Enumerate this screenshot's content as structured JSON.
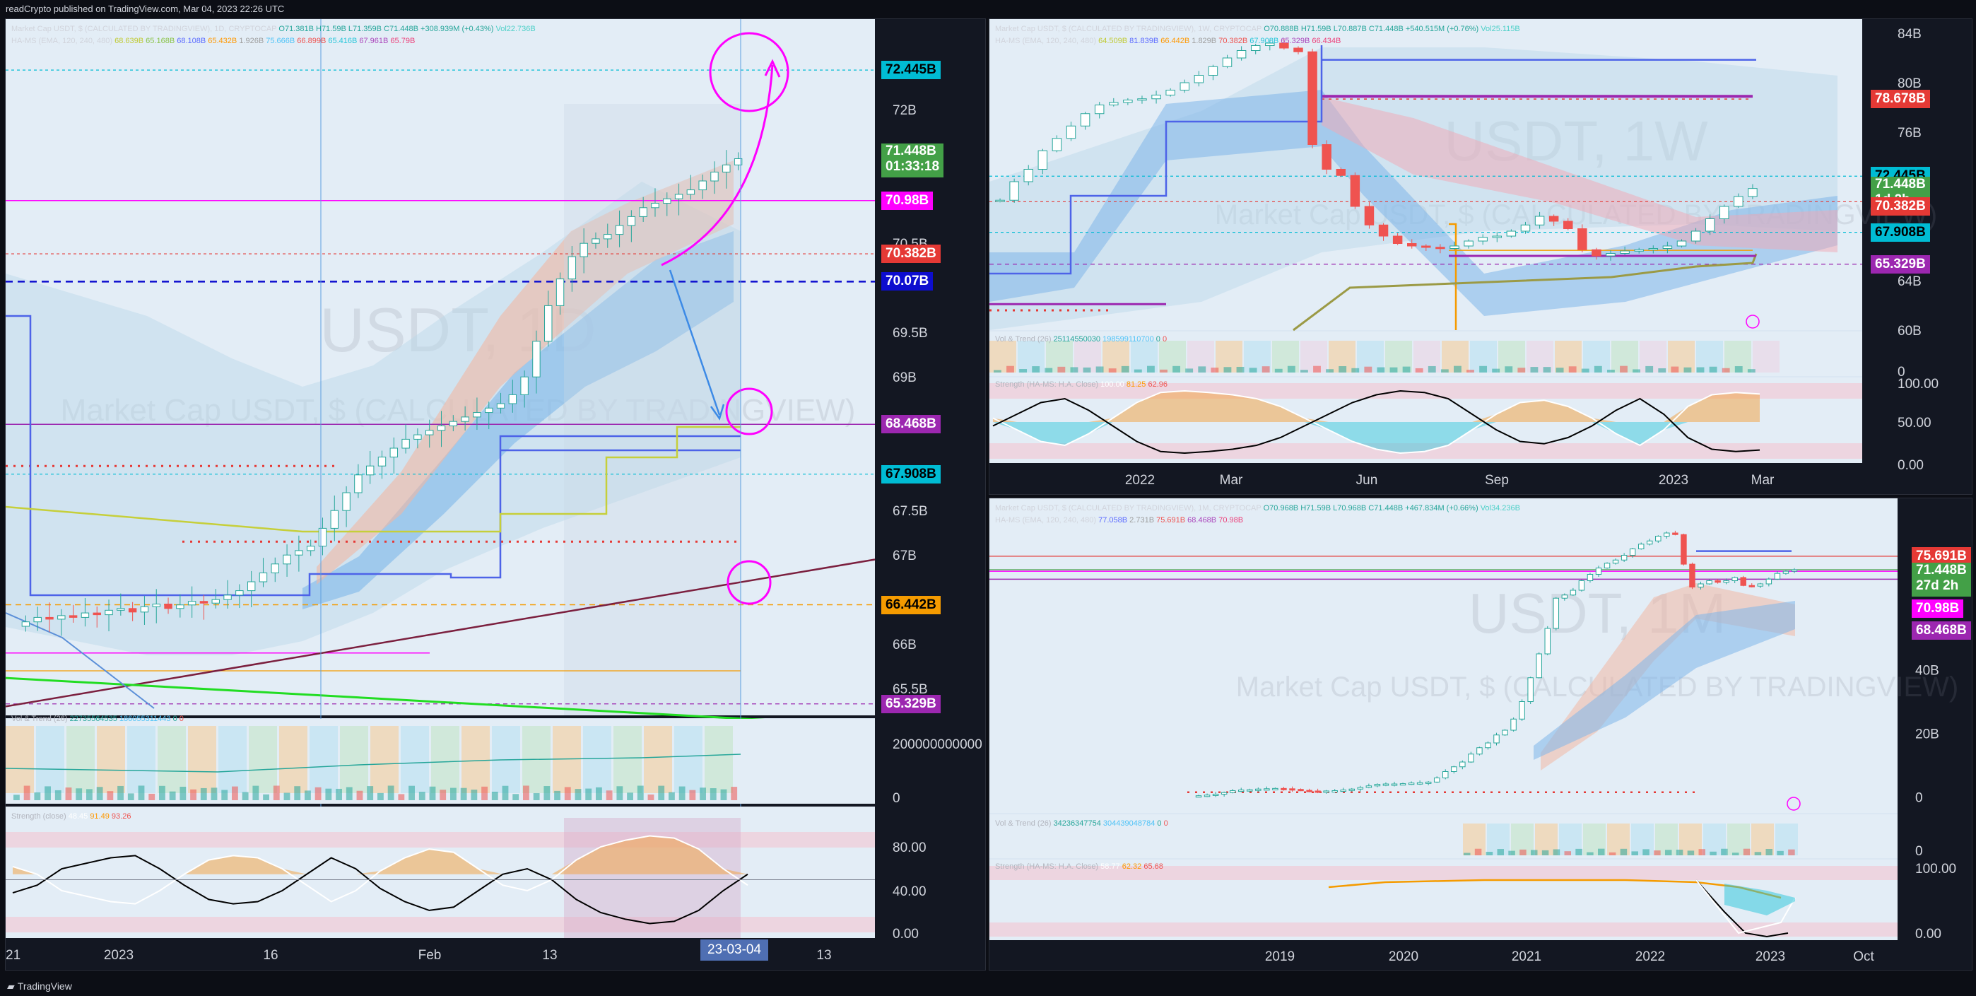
{
  "header": {
    "text": "readCrypto published on TradingView.com, Mar 04, 2023 22:26 UTC"
  },
  "footer": {
    "brand": "TradingView"
  },
  "panels": {
    "daily": {
      "legend1": {
        "title": "Market Cap USDT, $ (CALCULATED BY TRADINGVIEW), 1D, CRYPTOCAP",
        "o": "O71.381B",
        "h": "H71.59B",
        "l": "L71.359B",
        "c": "C71.448B",
        "chg": "+308.939M (+0.43%)",
        "vol": "Vol22.736B"
      },
      "legend2": {
        "name": "HA-MS (EMA, 120, 240, 480)",
        "v1": "68.639B",
        "v2": "65.168B",
        "v3": "68.108B",
        "v4": "65.432B",
        "v5": "1.926B",
        "v6": "75.666B",
        "v7": "66.899B",
        "v8": "65.416B",
        "v9": "67.961B",
        "v10": "65.79B"
      },
      "vol_legend": {
        "name": "Vol & Trend (26)",
        "v1": "22735564535",
        "v2": "186055311443",
        "v3": "0",
        "v4": "0"
      },
      "strength_legend": {
        "name": "Strength (close)",
        "v1": "48.45",
        "v2": "91.49",
        "v3": "93.26"
      },
      "watermark": {
        "ticker": "USDT, 1D",
        "desc": "Market Cap USDT, $ (CALCULATED BY TRADINGVIEW)"
      },
      "price_ticks": [
        "72B",
        "70.5B",
        "69.5B",
        "69B",
        "68.5B",
        "67.5B",
        "67B",
        "66B",
        "65.5B"
      ],
      "vol_ticks": [
        "200000000000",
        "0"
      ],
      "strength_ticks": [
        "80.00",
        "40.00",
        "0.00"
      ],
      "x_ticks": [
        "21",
        "2023",
        "16",
        "Feb",
        "13",
        "13"
      ],
      "date_box": "23-03-04",
      "tags": [
        {
          "label": "72.445B",
          "color": "#00bcd4",
          "text_color": "#000000"
        },
        {
          "label": "71.448B",
          "label2": "01:33:18",
          "color": "#43a047",
          "text_color": "#ffffff"
        },
        {
          "label": "70.98B",
          "color": "#ff00ff",
          "text_color": "#ffffff"
        },
        {
          "label": "70.382B",
          "color": "#e53935",
          "text_color": "#ffffff"
        },
        {
          "label": "70.07B",
          "color": "#0d0dcf",
          "text_color": "#ffffff"
        },
        {
          "label": "68.468B",
          "color": "#9c27b0",
          "text_color": "#ffffff"
        },
        {
          "label": "67.908B",
          "color": "#00bcd4",
          "text_color": "#000000"
        },
        {
          "label": "66.442B",
          "color": "#f59b00",
          "text_color": "#000000"
        },
        {
          "label": "65.329B",
          "color": "#9c27b0",
          "text_color": "#ffffff"
        }
      ]
    },
    "weekly": {
      "legend1": {
        "title": "Market Cap USDT, $ (CALCULATED BY TRADINGVIEW), 1W, CRYPTOCAP",
        "o": "O70.888B",
        "h": "H71.59B",
        "l": "L70.887B",
        "c": "C71.448B",
        "chg": "+540.515M (+0.76%)",
        "vol": "Vol25.115B"
      },
      "legend2": {
        "name": "HA-MS (EMA, 120, 240, 480)",
        "v1": "64.509B",
        "v2": "81.839B",
        "v3": "66.442B",
        "v4": "1.829B",
        "v5": "70.382B",
        "v6": "67.908B",
        "v7": "65.329B",
        "v8": "66.434B"
      },
      "vol_legend": {
        "name": "Vol & Trend (26)",
        "v1": "25114550030",
        "v2": "198599110700",
        "v3": "0",
        "v4": "0"
      },
      "strength_legend": {
        "name": "Strength (HA-MS: H.A. Close)",
        "v1": "100.00",
        "v2": "81.25",
        "v3": "62.96"
      },
      "watermark": {
        "ticker": "USDT, 1W",
        "desc": "Market Cap USDT, $ (CALCULATED BY TRADINGVIEW)"
      },
      "price_ticks": [
        "84B",
        "80B",
        "76B",
        "64B",
        "60B"
      ],
      "vol_ticks": [
        "0"
      ],
      "strength_ticks": [
        "100.00",
        "50.00",
        "0.00"
      ],
      "x_ticks": [
        "2022",
        "Mar",
        "Jun",
        "Sep",
        "2023",
        "Mar"
      ],
      "tags": [
        {
          "label": "78.678B",
          "color": "#e53935",
          "text_color": "#ffffff"
        },
        {
          "label": "72.445B",
          "color": "#00bcd4",
          "text_color": "#000000"
        },
        {
          "label": "71.448B",
          "label2": "1d 2h",
          "color": "#43a047",
          "text_color": "#ffffff"
        },
        {
          "label": "70.382B",
          "color": "#e53935",
          "text_color": "#ffffff"
        },
        {
          "label": "67.908B",
          "color": "#00bcd4",
          "text_color": "#000000"
        },
        {
          "label": "65.329B",
          "color": "#9c27b0",
          "text_color": "#ffffff"
        }
      ]
    },
    "monthly": {
      "legend1": {
        "title": "Market Cap USDT, $ (CALCULATED BY TRADINGVIEW), 1M, CRYPTOCAP",
        "o": "O70.968B",
        "h": "H71.59B",
        "l": "L70.968B",
        "c": "C71.448B",
        "chg": "+467.834M (+0.66%)",
        "vol": "Vol34.236B"
      },
      "legend2": {
        "name": "HA-MS (EMA, 120, 240, 480)",
        "v1": "77.058B",
        "v2": "2.731B",
        "v3": "75.691B",
        "v4": "68.468B",
        "v5": "70.98B"
      },
      "vol_legend": {
        "name": "Vol & Trend (26)",
        "v1": "34236347754",
        "v2": "304439048784",
        "v3": "0",
        "v4": "0"
      },
      "strength_legend": {
        "name": "Strength (HA-MS: H.A. Close)",
        "v1": "58.77",
        "v2": "62.32",
        "v3": "65.68"
      },
      "watermark": {
        "ticker": "USDT, 1M",
        "desc": "Market Cap USDT, $ (CALCULATED BY TRADINGVIEW)"
      },
      "price_ticks": [
        "40B",
        "20B",
        "0"
      ],
      "vol_ticks": [
        "0"
      ],
      "strength_ticks": [
        "100.00",
        "0.00"
      ],
      "x_ticks": [
        "2019",
        "2020",
        "2021",
        "2022",
        "2023",
        "Oct"
      ],
      "tags": [
        {
          "label": "75.691B",
          "color": "#e53935",
          "text_color": "#ffffff"
        },
        {
          "label": "71.448B",
          "label2": "27d 2h",
          "color": "#43a047",
          "text_color": "#ffffff"
        },
        {
          "label": "70.98B",
          "color": "#ff00ff",
          "text_color": "#ffffff"
        },
        {
          "label": "68.468B",
          "color": "#9c27b0",
          "text_color": "#ffffff"
        }
      ]
    }
  },
  "chart_data": [
    {
      "type": "candlestick",
      "title": "Market Cap USDT, $ (CALCULATED BY TRADINGVIEW), 1D, CRYPTOCAP",
      "ylim": [
        65.2,
        72.7
      ],
      "x_range": [
        "2022-12-20",
        "2023-03-18"
      ],
      "close": [
        66.25,
        66.3,
        66.28,
        66.32,
        66.3,
        66.35,
        66.33,
        66.38,
        66.4,
        66.36,
        66.42,
        66.45,
        66.4,
        66.44,
        66.48,
        66.46,
        66.5,
        66.55,
        66.6,
        66.7,
        66.8,
        66.9,
        67.0,
        67.05,
        67.1,
        67.3,
        67.5,
        67.7,
        67.9,
        68.0,
        68.1,
        68.2,
        68.3,
        68.35,
        68.4,
        68.45,
        68.5,
        68.55,
        68.6,
        68.65,
        68.7,
        68.8,
        69.0,
        69.4,
        69.8,
        70.1,
        70.35,
        70.5,
        70.55,
        70.6,
        70.7,
        70.8,
        70.9,
        70.95,
        71.0,
        71.05,
        71.1,
        71.2,
        71.3,
        71.38,
        71.45
      ],
      "levels": [
        72.445,
        71.448,
        70.98,
        70.382,
        70.07,
        68.468,
        67.908,
        66.442,
        65.329
      ],
      "strength": [
        62,
        55,
        40,
        35,
        30,
        28,
        40,
        55,
        68,
        72,
        70,
        60,
        45,
        30,
        40,
        58,
        70,
        78,
        75,
        60,
        45,
        40,
        50,
        68,
        80,
        86,
        90,
        88,
        78,
        60,
        45
      ]
    },
    {
      "type": "candlestick",
      "title": "Market Cap USDT, $ (CALCULATED BY TRADINGVIEW), 1W, CRYPTOCAP",
      "ylim": [
        60,
        84
      ],
      "x_range": [
        "2021-11-15",
        "2023-03-27"
      ],
      "close": [
        70.5,
        72.0,
        73.0,
        74.5,
        75.5,
        76.5,
        77.5,
        78.2,
        78.4,
        78.6,
        78.7,
        79.0,
        79.4,
        80.0,
        80.6,
        81.3,
        82.0,
        82.6,
        83.0,
        83.2,
        82.8,
        82.5,
        75.0,
        73.0,
        72.5,
        70.0,
        68.5,
        67.6,
        67.0,
        66.8,
        66.7,
        66.6,
        66.8,
        67.2,
        67.5,
        67.6,
        68.0,
        68.5,
        69.2,
        68.8,
        68.2,
        66.5,
        66.0,
        66.2,
        66.4,
        66.5,
        66.6,
        66.8,
        67.2,
        68.0,
        69.0,
        70.0,
        70.8,
        71.448
      ],
      "levels": [
        78.678,
        72.445,
        71.448,
        70.382,
        67.908,
        65.329
      ],
      "strength": [
        55,
        40,
        25,
        20,
        35,
        55,
        75,
        88,
        90,
        88,
        85,
        80,
        70,
        55,
        40,
        25,
        15,
        10,
        12,
        20,
        40,
        60,
        75,
        78,
        70,
        55,
        35,
        20,
        40,
        70,
        85,
        88,
        86
      ]
    },
    {
      "type": "candlestick",
      "title": "Market Cap USDT, $ (CALCULATED BY TRADINGVIEW), 1M, CRYPTOCAP",
      "ylim": [
        -5,
        85
      ],
      "x_range": [
        "2017-09-01",
        "2023-12-31"
      ],
      "close": [
        0.4,
        0.6,
        0.9,
        1.4,
        2.0,
        2.2,
        2.3,
        2.5,
        2.6,
        2.7,
        2.6,
        2.4,
        2.1,
        1.9,
        1.8,
        1.9,
        2.0,
        2.2,
        2.5,
        3.0,
        3.5,
        4.0,
        4.1,
        4.1,
        4.2,
        4.4,
        4.5,
        4.7,
        6.0,
        8.0,
        9.5,
        11.0,
        13.5,
        15.5,
        17.0,
        19.5,
        21.0,
        24.5,
        30.0,
        37.5,
        45.0,
        53.0,
        62.5,
        63.5,
        65.0,
        68.0,
        70.0,
        72.0,
        73.5,
        74.5,
        76.0,
        78.0,
        79.5,
        80.5,
        82.0,
        83.0,
        82.5,
        73.2,
        66.0,
        67.0,
        68.0,
        67.5,
        68.0,
        69.0,
        66.5,
        66.3,
        67.0,
        68.5,
        70.3,
        70.97,
        71.448
      ],
      "levels": [
        75.691,
        71.448,
        70.98,
        68.468
      ]
    }
  ]
}
